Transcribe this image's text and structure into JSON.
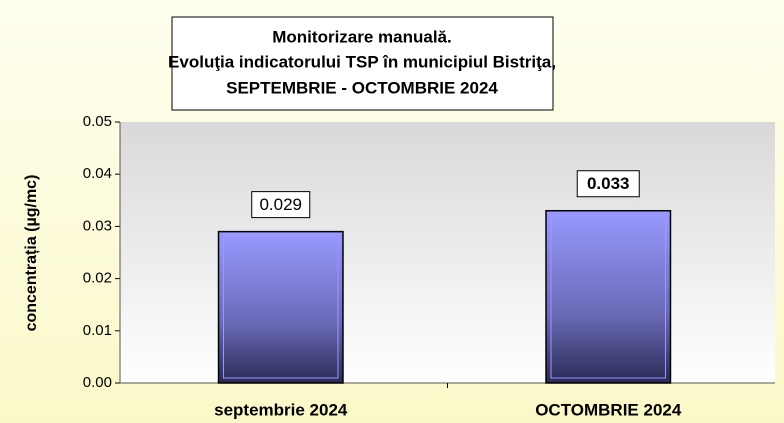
{
  "chart_data": {
    "type": "bar",
    "title": [
      "Monitorizare manuală.",
      "Evoluţia indicatorului TSP în municipiul Bistriţa,",
      "SEPTEMBRIE - OCTOMBRIE 2024"
    ],
    "y_label": "concentrația (µg/mc)",
    "categories": [
      "septembrie 2024",
      "OCTOMBRIE 2024"
    ],
    "values": [
      0.029,
      0.033
    ],
    "color": "#9999ff",
    "ylim": [
      0,
      0.05
    ],
    "yticks": [
      {
        "value": 0,
        "label": "0.00"
      },
      0.01,
      0.02,
      0.03,
      0.04,
      0.05
    ],
    "grid": true
  }
}
